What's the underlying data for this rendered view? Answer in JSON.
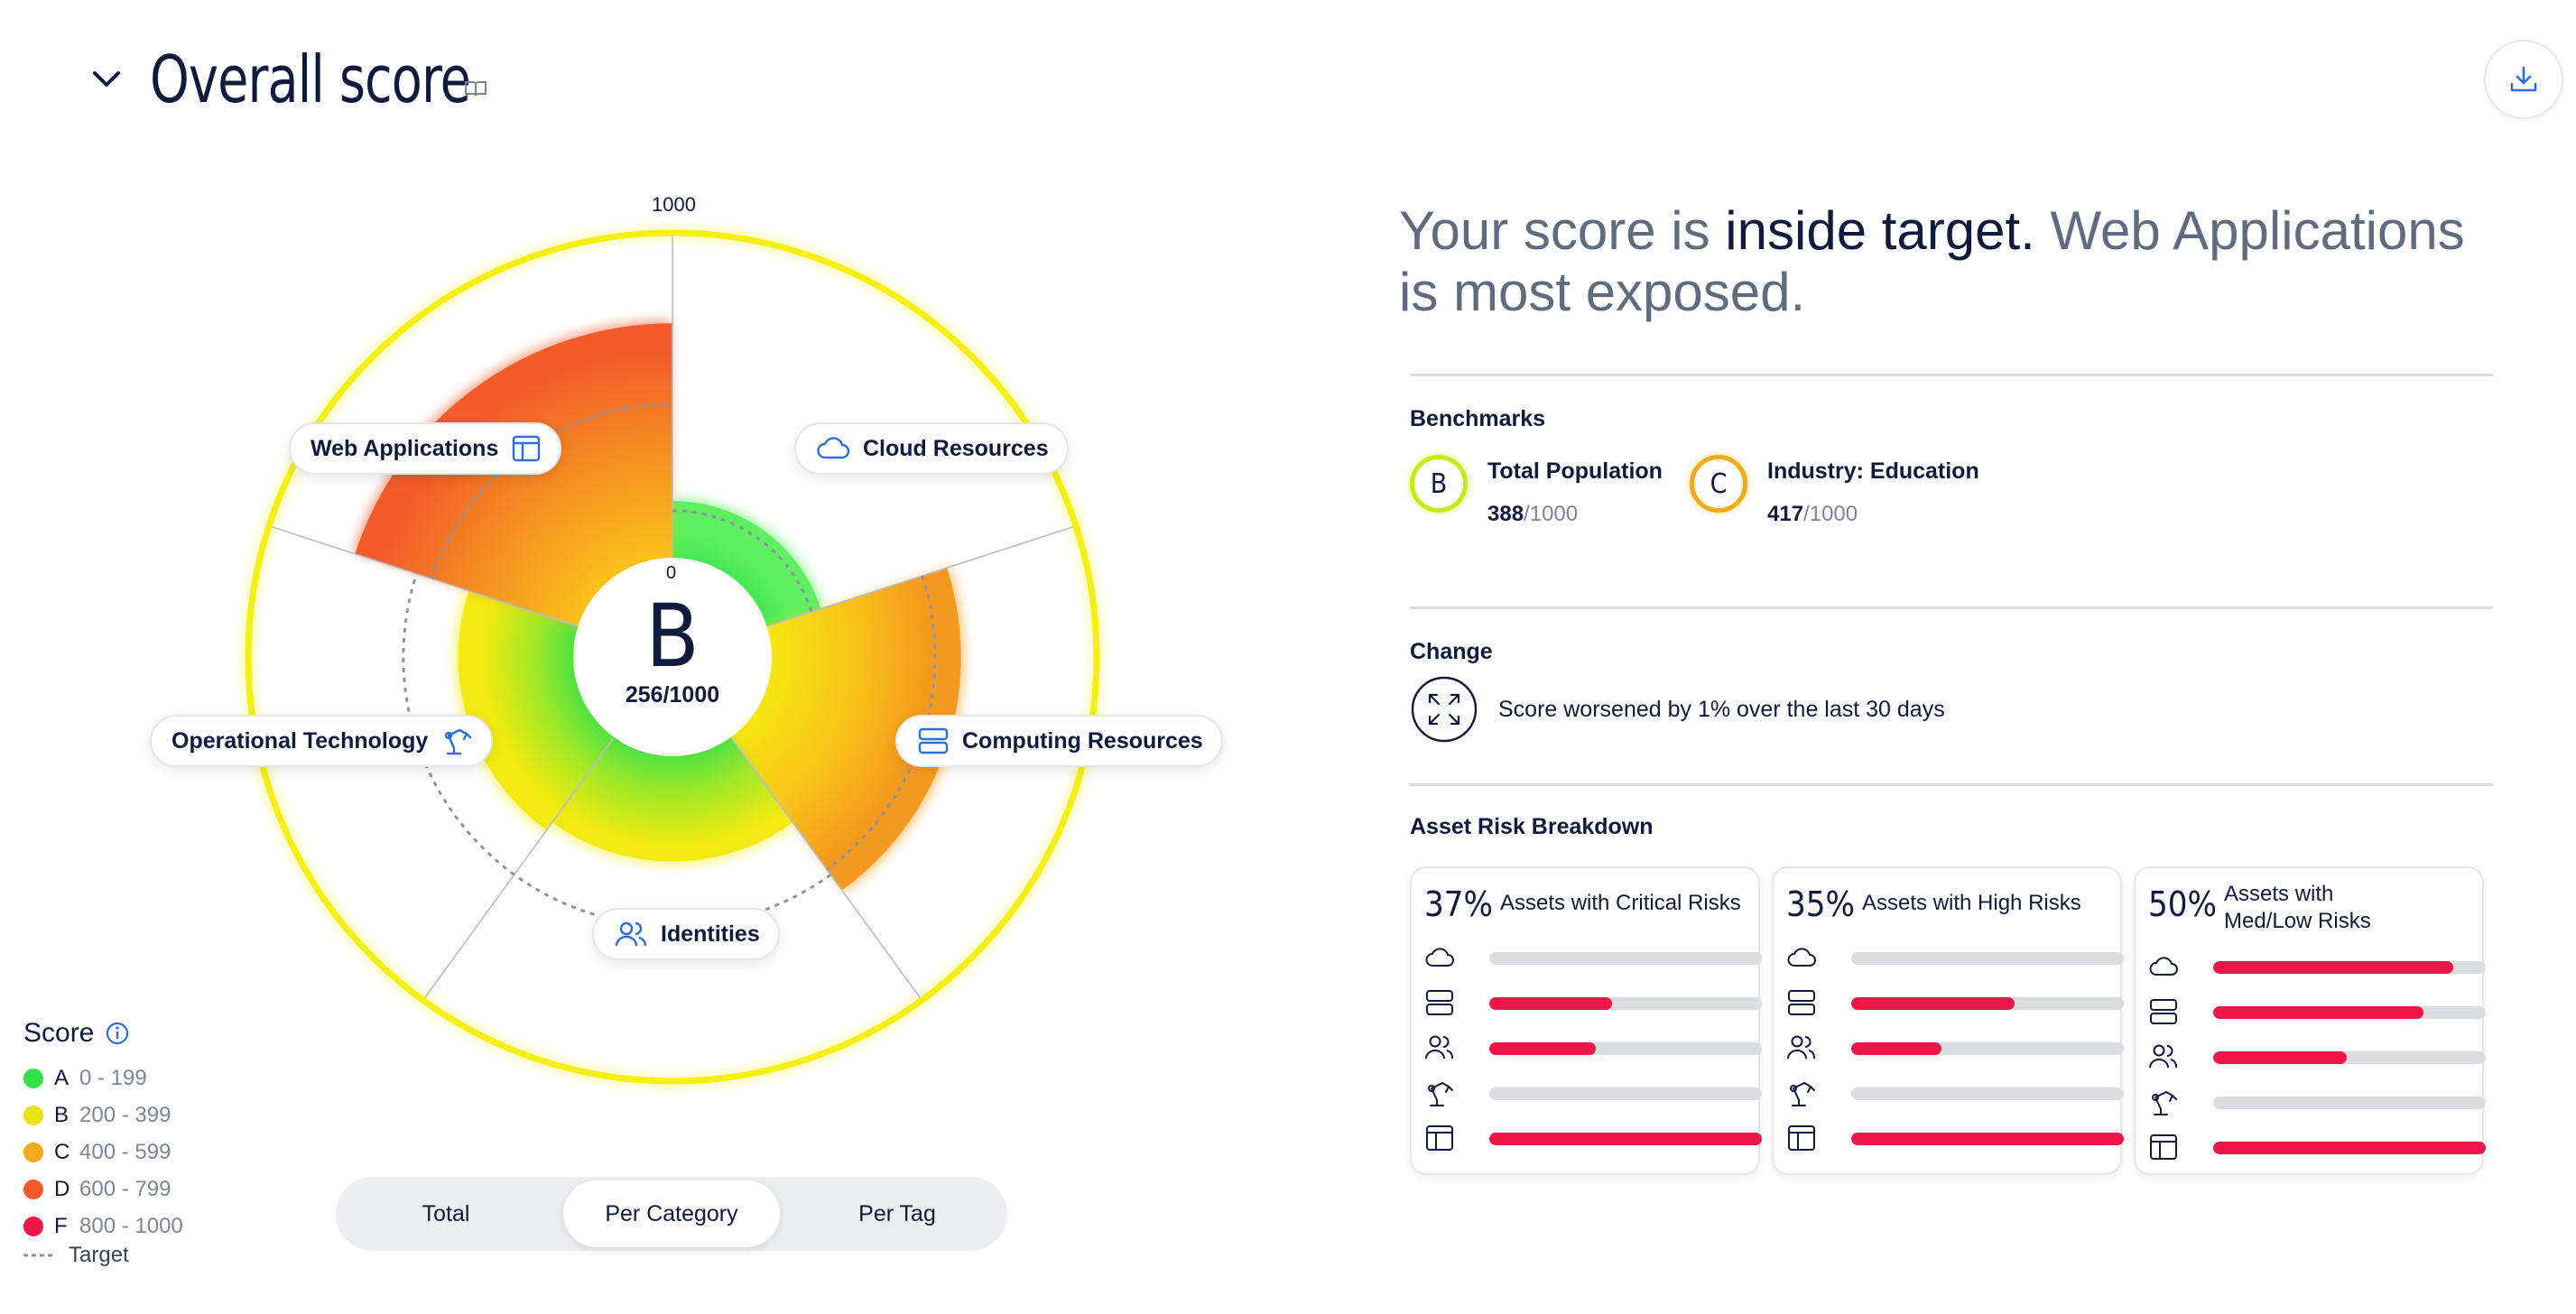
{
  "header": {
    "title": "Overall score",
    "icons": {
      "collapse": "chevron-down-icon",
      "info": "book-icon",
      "download": "download-icon"
    }
  },
  "chart_data": {
    "type": "radial-bar",
    "scale_max_label": "1000",
    "scale_min_label": "0",
    "max": 1000,
    "overall": {
      "grade": "B",
      "score": "256/1000",
      "value": 256
    },
    "categories": [
      {
        "name": "Cloud Resources",
        "icon": "cloud-icon",
        "value": 170,
        "target": 140
      },
      {
        "name": "Computing Resources",
        "icon": "server-icon",
        "value": 580,
        "target": 500
      },
      {
        "name": "Identities",
        "icon": "users-icon",
        "value": 320,
        "target": 520
      },
      {
        "name": "Operational Technology",
        "icon": "robot-arm-icon",
        "value": 350,
        "target": 520
      },
      {
        "name": "Web Applications",
        "icon": "browser-window-icon",
        "value": 720,
        "target": 470
      }
    ],
    "overall_target": 1000,
    "colors": {
      "A": "#33e04a",
      "B": "#f5ea0f",
      "C": "#f7a81b",
      "D": "#f35b2a",
      "F": "#ee1745"
    }
  },
  "legend": {
    "title": "Score",
    "items": [
      {
        "grade": "A",
        "range": "0 - 199",
        "color": "#33e04a"
      },
      {
        "grade": "B",
        "range": "200 - 399",
        "color": "#e8e20e"
      },
      {
        "grade": "C",
        "range": "400 - 599",
        "color": "#f7a81b"
      },
      {
        "grade": "D",
        "range": "600 - 799",
        "color": "#f35b2a"
      },
      {
        "grade": "F",
        "range": "800 - 1000",
        "color": "#ee1745"
      }
    ],
    "target_label": "Target"
  },
  "toggle": {
    "options": [
      "Total",
      "Per Category",
      "Per Tag"
    ],
    "active": "Per Category"
  },
  "summary": {
    "part1": "Your score is ",
    "strong": "inside target.",
    "part2": " Web Applications is most exposed."
  },
  "benchmarks": {
    "title": "Benchmarks",
    "items": [
      {
        "name": "Total Population",
        "grade": "B",
        "score": "388",
        "den": "/1000",
        "ring": "#c8ea12"
      },
      {
        "name": "Industry: Education",
        "grade": "C",
        "score": "417",
        "den": "/1000",
        "ring": "#f7a81b"
      }
    ]
  },
  "change": {
    "title": "Change",
    "text": "Score worsened by 1% over the last 30 days",
    "icon": "expand-arrows-icon"
  },
  "asset_risk": {
    "title": "Asset Risk Breakdown",
    "cards": [
      {
        "pct": "37%",
        "label": "Assets with Critical Risks",
        "bars": [
          0.0,
          0.45,
          0.39,
          0.0,
          1.0
        ]
      },
      {
        "pct": "35%",
        "label": "Assets with High Risks",
        "bars": [
          0.0,
          0.6,
          0.33,
          0.0,
          1.0
        ]
      },
      {
        "pct": "50%",
        "label": "Assets with Med/Low Risks",
        "bars": [
          0.88,
          0.77,
          0.49,
          0.0,
          1.0
        ]
      }
    ],
    "bar_icons": [
      "cloud-icon",
      "server-icon",
      "users-icon",
      "robot-arm-icon",
      "browser-window-icon"
    ]
  }
}
